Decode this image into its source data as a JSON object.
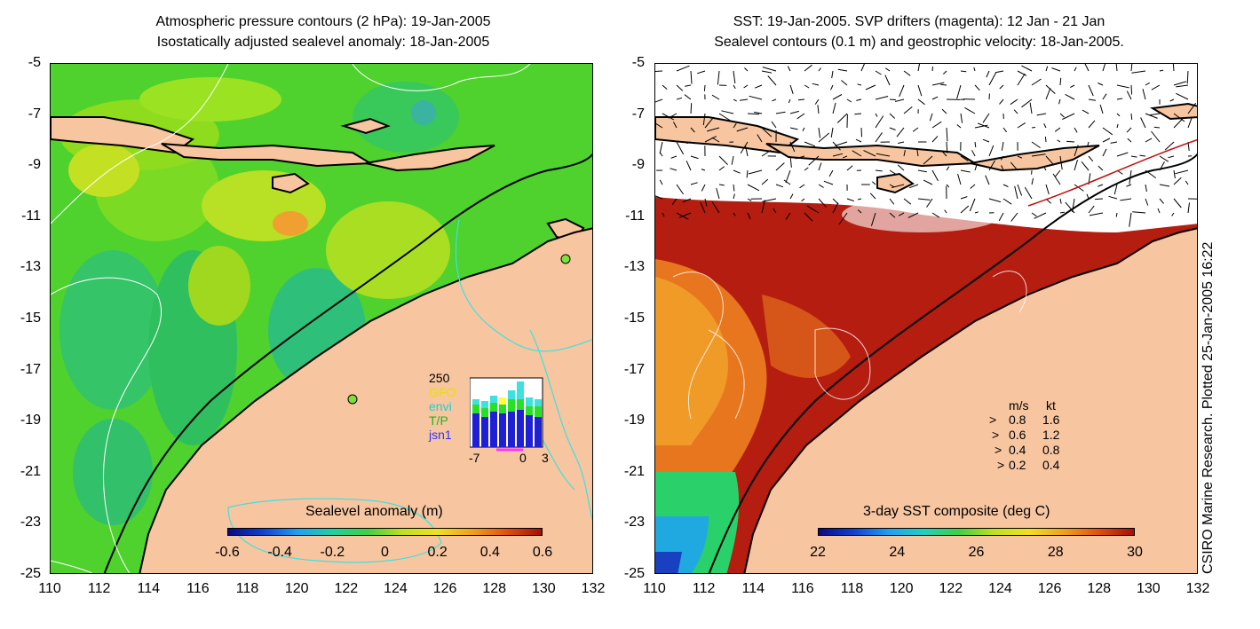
{
  "left_panel": {
    "title_line1": "Atmospheric pressure contours (2 hPa): 19-Jan-2005",
    "title_line2": "Isostatically adjusted sealevel anomaly: 18-Jan-2005",
    "colorbar_title": "Sealevel anomaly (m)",
    "colorbar_ticks": [
      "-0.6",
      "-0.4",
      "-0.2",
      "0",
      "0.2",
      "0.4",
      "0.6"
    ],
    "inset": {
      "ymax_label": "250",
      "legend": [
        {
          "label": "GFO",
          "color": "#ffff33"
        },
        {
          "label": "envi",
          "color": "#33ffff"
        },
        {
          "label": "T/P",
          "color": "#33ff33"
        },
        {
          "label": "jsn1",
          "color": "#3333ff"
        }
      ],
      "x_ticks": [
        "-7",
        "0",
        "3"
      ]
    }
  },
  "right_panel": {
    "title_line1": "SST: 19-Jan-2005. SVP drifters (magenta): 12 Jan - 21 Jan",
    "title_line2": "Sealevel contours (0.1 m) and geostrophic velocity: 18-Jan-2005.",
    "colorbar_title": "3-day SST composite (deg C)",
    "colorbar_ticks": [
      "22",
      "24",
      "26",
      "28",
      "30"
    ],
    "velocity_legend": {
      "header_ms": "m/s",
      "header_kt": "kt",
      "rows": [
        {
          "ms": "0.8",
          "kt": "1.6"
        },
        {
          "ms": "0.6",
          "kt": "1.2"
        },
        {
          "ms": "0.4",
          "kt": "0.8"
        },
        {
          "ms": "0.2",
          "kt": "0.4"
        }
      ]
    }
  },
  "axes": {
    "y_ticks": [
      "-5",
      "-7",
      "-9",
      "-11",
      "-13",
      "-15",
      "-17",
      "-19",
      "-21",
      "-23",
      "-25"
    ],
    "x_ticks": [
      "110",
      "112",
      "114",
      "116",
      "118",
      "120",
      "122",
      "124",
      "126",
      "128",
      "130",
      "132"
    ]
  },
  "credit": "CSIRO Marine Research. Plotted 25-Jan-2005 16:22",
  "colors": {
    "land": "#f7c59f",
    "coast": "#000000",
    "sst_warm": "#b01c10",
    "ssla_base": "#3fcc2a"
  }
}
